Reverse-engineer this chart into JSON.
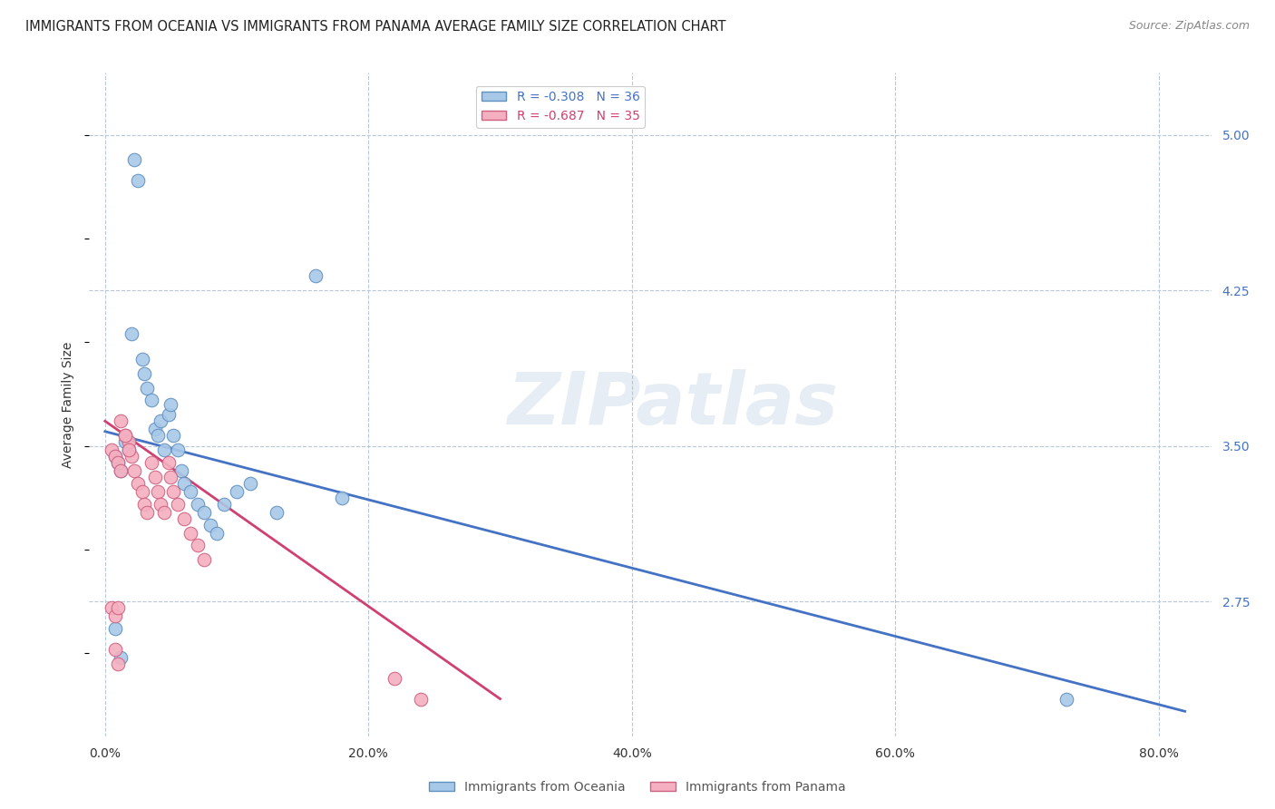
{
  "title": "IMMIGRANTS FROM OCEANIA VS IMMIGRANTS FROM PANAMA AVERAGE FAMILY SIZE CORRELATION CHART",
  "source": "Source: ZipAtlas.com",
  "ylabel": "Average Family Size",
  "xlabel_ticks": [
    "0.0%",
    "20.0%",
    "40.0%",
    "60.0%",
    "80.0%"
  ],
  "xlabel_vals": [
    0.0,
    0.2,
    0.4,
    0.6,
    0.8
  ],
  "ytick_labels": [
    "5.00",
    "4.25",
    "3.50",
    "2.75"
  ],
  "ytick_vals": [
    5.0,
    4.25,
    3.5,
    2.75
  ],
  "ylim": [
    2.1,
    5.3
  ],
  "xlim": [
    -0.012,
    0.84
  ],
  "series1_color": "#a8c8e8",
  "series2_color": "#f4b0c0",
  "series1_edge": "#6090c0",
  "series2_edge": "#d06080",
  "line1_color": "#4472c4",
  "line2_color": "#d04070",
  "title_fontsize": 10.5,
  "axis_label_fontsize": 10,
  "tick_fontsize": 10,
  "watermark_text": "ZIPatlas",
  "series1_label": "Immigrants from Oceania",
  "series2_label": "Immigrants from Panama",
  "legend_label1": "R = -0.308   N = 36",
  "legend_label2": "R = -0.687   N = 35",
  "line1_x0": 0.0,
  "line1_x1": 0.82,
  "line1_y0": 3.57,
  "line1_y1": 2.22,
  "line2_x0": 0.0,
  "line2_x1": 0.3,
  "line2_y0": 3.62,
  "line2_y1": 2.28,
  "oceania_x": [
    0.008,
    0.01,
    0.012,
    0.015,
    0.018,
    0.02,
    0.022,
    0.025,
    0.028,
    0.03,
    0.032,
    0.035,
    0.038,
    0.04,
    0.042,
    0.045,
    0.048,
    0.05,
    0.052,
    0.055,
    0.058,
    0.06,
    0.065,
    0.07,
    0.075,
    0.08,
    0.085,
    0.09,
    0.1,
    0.11,
    0.13,
    0.18,
    0.73,
    0.008,
    0.012,
    0.16
  ],
  "oceania_y": [
    3.45,
    3.42,
    3.38,
    3.52,
    3.48,
    4.04,
    4.88,
    4.78,
    3.92,
    3.85,
    3.78,
    3.72,
    3.58,
    3.55,
    3.62,
    3.48,
    3.65,
    3.7,
    3.55,
    3.48,
    3.38,
    3.32,
    3.28,
    3.22,
    3.18,
    3.12,
    3.08,
    3.22,
    3.28,
    3.32,
    3.18,
    3.25,
    2.28,
    2.62,
    2.48,
    4.32
  ],
  "panama_x": [
    0.005,
    0.008,
    0.01,
    0.012,
    0.015,
    0.018,
    0.02,
    0.022,
    0.025,
    0.028,
    0.03,
    0.032,
    0.035,
    0.038,
    0.04,
    0.042,
    0.045,
    0.048,
    0.05,
    0.052,
    0.055,
    0.06,
    0.065,
    0.07,
    0.075,
    0.005,
    0.008,
    0.01,
    0.012,
    0.015,
    0.018,
    0.22,
    0.24,
    0.008,
    0.01
  ],
  "panama_y": [
    3.48,
    3.45,
    3.42,
    3.38,
    3.55,
    3.52,
    3.45,
    3.38,
    3.32,
    3.28,
    3.22,
    3.18,
    3.42,
    3.35,
    3.28,
    3.22,
    3.18,
    3.42,
    3.35,
    3.28,
    3.22,
    3.15,
    3.08,
    3.02,
    2.95,
    2.72,
    2.68,
    2.72,
    3.62,
    3.55,
    3.48,
    2.38,
    2.28,
    2.52,
    2.45
  ]
}
